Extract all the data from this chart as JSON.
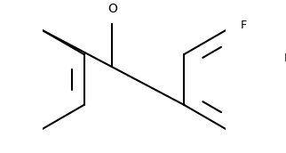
{
  "background_color": "#ffffff",
  "line_color": "#000000",
  "line_width": 1.5,
  "font_size_labels": 9,
  "figsize": [
    3.22,
    1.72
  ],
  "dpi": 100
}
